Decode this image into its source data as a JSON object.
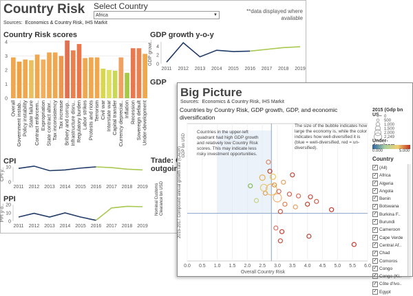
{
  "back": {
    "title": "Country Risk",
    "select_label": "Select Country",
    "select_value": "Africa",
    "note": "**data displayed where available",
    "sources_label": "Sources:",
    "sources_value": "Economics & Country Risk, IHS Markit",
    "risk_title": "Country Risk scores",
    "gdp_title": "GDP growth y-o-y",
    "gdp_partial": "GDP",
    "trade_partial": "Trade: C outgoing",
    "trade_ylabel": "Nominal Customs Clearance bn USD",
    "cpi_title": "CPI",
    "ppi_title": "PPI"
  },
  "front": {
    "title": "Big Picture",
    "sources_label": "Sources:",
    "sources_value": "Economics & Country Risk, IHS Markit",
    "subtitle": "Countries by Country  Risk, GDP growth, GDP, and economic diversification",
    "legend_title": "2015 (Gdp bn US..",
    "size_labels": [
      "0",
      "500",
      "1,000",
      "1,500",
      "2,000",
      "2,249"
    ],
    "color_title": "Under-developm..",
    "color_min": "0.000",
    "color_max": "5.000",
    "country_title": "Country",
    "countries": [
      "(All)",
      "Africa",
      "Algeria",
      "Angola",
      "Benin",
      "Botswana",
      "Burkina F..",
      "Burundi",
      "Cameroon",
      "Cape Verde",
      "Central Af..",
      "Chad",
      "Comoros",
      "Congo",
      "Congo (Ki..",
      "Côte d'Ivo..",
      "Egypt"
    ],
    "annotation_left": "Countries in the upper-left quadrant had high GDP growth and relatively low Country Risk scores. This may indicate less risky investment opportunities.",
    "annotation_right": "The size of the bubble indicates how large the economy is, while the color indicates how well-diversified it is (blue = well-diversified, red = un-diversified).",
    "gdp_axis_label": "GDP bn USD"
  },
  "chart_data": [
    {
      "type": "bar",
      "title": "Country Risk scores",
      "categories": [
        "Overall",
        "Government instab..",
        "Policy instability",
        "State failure",
        "Contract enforcem..",
        "Expropriation",
        "State contract alter..",
        "Tax inconsistency",
        "Tax increase",
        "Bribery and corrup..",
        "Infrastructure disru..",
        "Regulatory burden",
        "Labor strikes",
        "Protests and riots",
        "Terrorism",
        "Civil war",
        "Interstate war",
        "Capital transfer",
        "Currency depreciat..",
        "Inflation",
        "Recession",
        "Sovereign default",
        "Under-development"
      ],
      "values": [
        2.9,
        2.6,
        2.75,
        2.7,
        3.1,
        2.75,
        3.25,
        3.25,
        3.0,
        4.1,
        3.4,
        3.85,
        2.85,
        2.9,
        2.9,
        2.1,
        2.0,
        1.95,
        2.9,
        1.8,
        3.55,
        3.55,
        3.15
      ],
      "ylim": [
        0,
        4
      ],
      "yticks": [
        0,
        1,
        2,
        3,
        4
      ]
    },
    {
      "type": "line",
      "title": "GDP growth y-o-y",
      "ylabel": "GDP growt..",
      "x": [
        "2011",
        "2012",
        "2013",
        "2014",
        "2015",
        "2016",
        "2017",
        "2018",
        "2019"
      ],
      "values": [
        0.4,
        4.8,
        1.6,
        3.1,
        2.8,
        2.9,
        3.3,
        3.7,
        3.9
      ],
      "ylim": [
        0,
        5
      ],
      "yticks": [
        0,
        2,
        4
      ]
    },
    {
      "type": "line",
      "title": "CPI",
      "ylabel": "CPI y..",
      "x": [
        "2011",
        "2012",
        "2013",
        "2014",
        "2015",
        "2016",
        "2017",
        "2018",
        "2019"
      ],
      "values": [
        9.0,
        10.5,
        7.5,
        8.0,
        9.2,
        10.0,
        9.5,
        8.5,
        8.0
      ],
      "ylim": [
        0,
        10
      ],
      "yticks": [
        0,
        10
      ]
    },
    {
      "type": "line",
      "title": "PPI",
      "ylabel": "PPI y-o..",
      "x": [
        "2011",
        "2012",
        "2013",
        "2014",
        "2015",
        "2016",
        "2017",
        "2018",
        "2019"
      ],
      "values": [
        5,
        9.5,
        5,
        10,
        5,
        1,
        16,
        18,
        17.5
      ],
      "ylim": [
        0,
        20
      ],
      "yticks": [
        0,
        10,
        20
      ]
    },
    {
      "type": "scatter",
      "title": "Countries by Country  Risk, GDP growth, GDP, and economic diversification",
      "xlabel": "Overall Country Risk",
      "ylabel": "2015-2017 Compound annual growth rate (CAGR)",
      "xlim": [
        0.0,
        6.0
      ],
      "xticks": [
        "0.0",
        "0.5",
        "1.0",
        "1.5",
        "2.0",
        "2.5",
        "3.0",
        "3.5",
        "4.0",
        "4.5",
        "5.0",
        "5.5",
        "6.0"
      ],
      "points": [
        {
          "x": 2.1,
          "y": 5.2,
          "c": "#88b858",
          "r": 3
        },
        {
          "x": 2.3,
          "y": 3.6,
          "c": "#c8d080",
          "r": 3
        },
        {
          "x": 2.5,
          "y": 6.1,
          "c": "#e8b050",
          "r": 4
        },
        {
          "x": 2.55,
          "y": 5.0,
          "c": "#e8c870",
          "r": 5
        },
        {
          "x": 2.6,
          "y": 4.4,
          "c": "#e0a060",
          "r": 3
        },
        {
          "x": 2.7,
          "y": 7.8,
          "c": "#d88860",
          "r": 3
        },
        {
          "x": 2.75,
          "y": 6.8,
          "c": "#c04030",
          "r": 3
        },
        {
          "x": 2.8,
          "y": 4.8,
          "c": "#e8c070",
          "r": 8
        },
        {
          "x": 2.85,
          "y": 6.2,
          "c": "#f0c050",
          "r": 4
        },
        {
          "x": 2.9,
          "y": 5.3,
          "c": "#e09040",
          "r": 3
        },
        {
          "x": 3.0,
          "y": 3.9,
          "c": "#f0b070",
          "r": 6
        },
        {
          "x": 3.05,
          "y": 4.6,
          "c": "#d87060",
          "r": 3
        },
        {
          "x": 3.1,
          "y": 2.4,
          "c": "#c85040",
          "r": 3
        },
        {
          "x": 3.2,
          "y": 5.6,
          "c": "#e8a060",
          "r": 3
        },
        {
          "x": 3.25,
          "y": 3.2,
          "c": "#e08050",
          "r": 3
        },
        {
          "x": 3.4,
          "y": 4.3,
          "c": "#d06050",
          "r": 3
        },
        {
          "x": 3.5,
          "y": 6.4,
          "c": "#c04838",
          "r": 3
        },
        {
          "x": 3.6,
          "y": 2.9,
          "c": "#e8a060",
          "r": 3
        },
        {
          "x": 3.7,
          "y": 4.1,
          "c": "#d87060",
          "r": 3
        },
        {
          "x": 4.0,
          "y": 3.2,
          "c": "#c04030",
          "r": 3
        },
        {
          "x": 4.1,
          "y": 4.0,
          "c": "#c84838",
          "r": 3
        },
        {
          "x": 4.3,
          "y": 3.5,
          "c": "#d06050",
          "r": 3
        },
        {
          "x": 4.8,
          "y": 2.6,
          "c": "#c03828",
          "r": 3
        },
        {
          "x": 2.95,
          "y": 0.6,
          "c": "#d87060",
          "r": 3
        },
        {
          "x": 3.15,
          "y": 0.2,
          "c": "#c04030",
          "r": 3
        },
        {
          "x": 3.1,
          "y": -0.8,
          "c": "#c85040",
          "r": 3
        },
        {
          "x": 4.05,
          "y": -0.3,
          "c": "#c04030",
          "r": 3
        },
        {
          "x": 5.55,
          "y": -1.2,
          "c": "#c03828",
          "r": 3
        }
      ]
    }
  ],
  "colors": {
    "risk_bars": [
      "#f0a850",
      "#f0a040",
      "#f0a850",
      "#e8c060",
      "#f0a850",
      "#f0b060",
      "#f0a850",
      "#f0a850",
      "#e89850",
      "#e07050",
      "#e88050",
      "#e8784c",
      "#f0a850",
      "#f0a850",
      "#f0a850",
      "#d8d850",
      "#e0e060",
      "#c8d858",
      "#f0a060",
      "#a8c848",
      "#e87850",
      "#e88050",
      "#f0a850"
    ],
    "line_dark": "#1f3a66",
    "line_light": "#a8c850"
  }
}
